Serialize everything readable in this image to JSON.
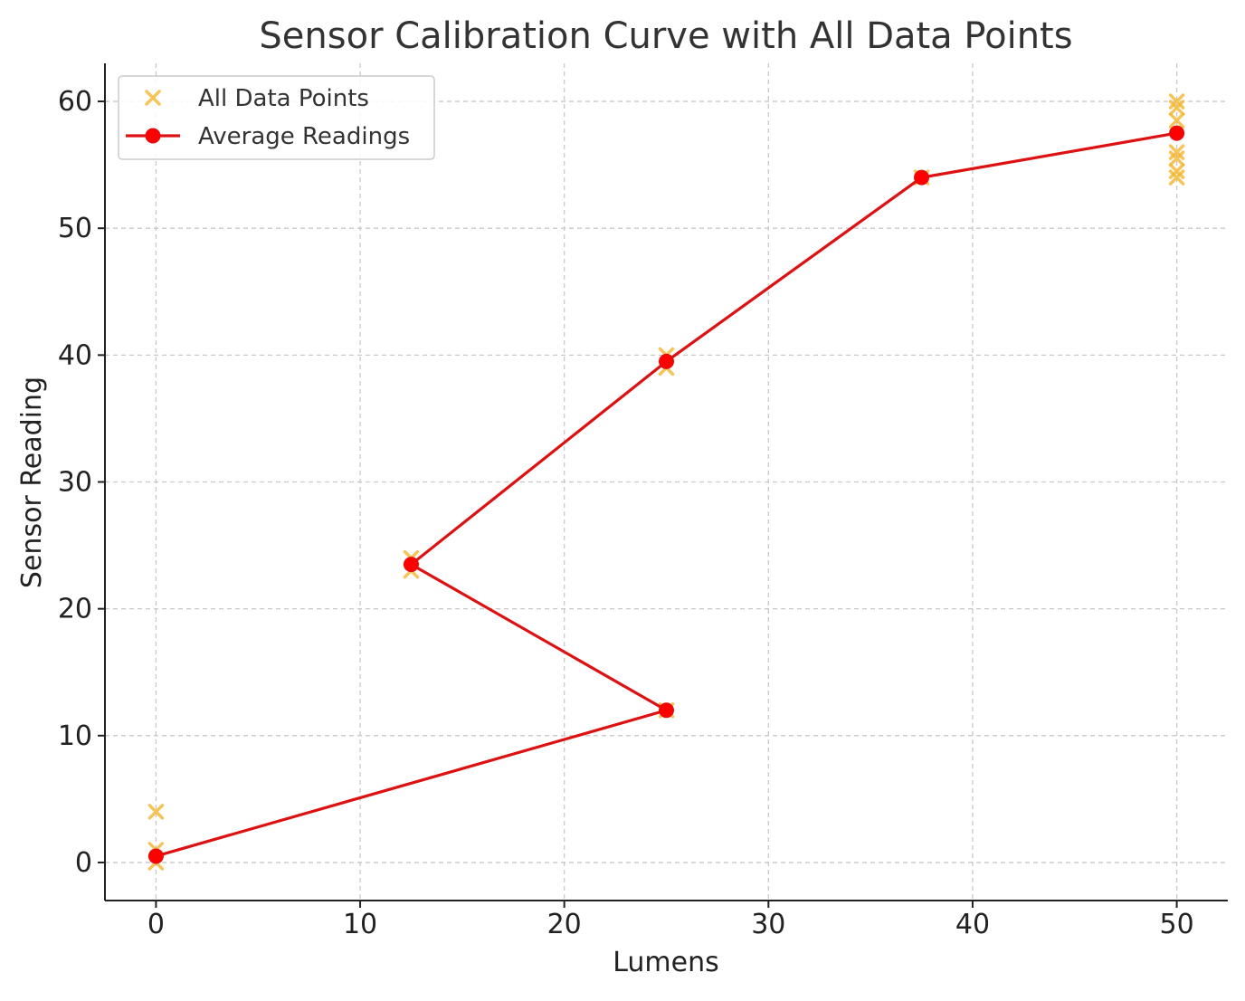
{
  "chart_data": {
    "type": "line",
    "title": "Sensor Calibration Curve with All Data Points",
    "xlabel": "Lumens",
    "ylabel": "Sensor Reading",
    "xlim": [
      -2.5,
      52.5
    ],
    "ylim": [
      -3,
      63
    ],
    "xticks": [
      0,
      10,
      20,
      30,
      40,
      50
    ],
    "yticks": [
      0,
      10,
      20,
      30,
      40,
      50,
      60
    ],
    "grid": true,
    "legend_position": "top-left",
    "series": [
      {
        "name": "All Data Points",
        "kind": "scatter",
        "marker": "x",
        "color": "#F4B731",
        "points": [
          [
            0,
            0
          ],
          [
            0,
            1
          ],
          [
            0,
            4
          ],
          [
            12.5,
            23
          ],
          [
            12.5,
            24
          ],
          [
            25,
            12
          ],
          [
            25,
            39
          ],
          [
            25,
            40
          ],
          [
            37.5,
            54
          ],
          [
            50,
            54
          ],
          [
            50,
            54.5
          ],
          [
            50,
            55.5
          ],
          [
            50,
            56
          ],
          [
            50,
            58.5
          ],
          [
            50,
            59.5
          ],
          [
            50,
            60
          ]
        ]
      },
      {
        "name": "Average Readings",
        "kind": "line",
        "marker": "o",
        "color": "#DD1111",
        "points": [
          [
            0,
            0.5
          ],
          [
            25,
            12
          ],
          [
            12.5,
            23.5
          ],
          [
            25,
            39.5
          ],
          [
            37.5,
            54
          ],
          [
            50,
            57.5
          ]
        ]
      }
    ]
  }
}
